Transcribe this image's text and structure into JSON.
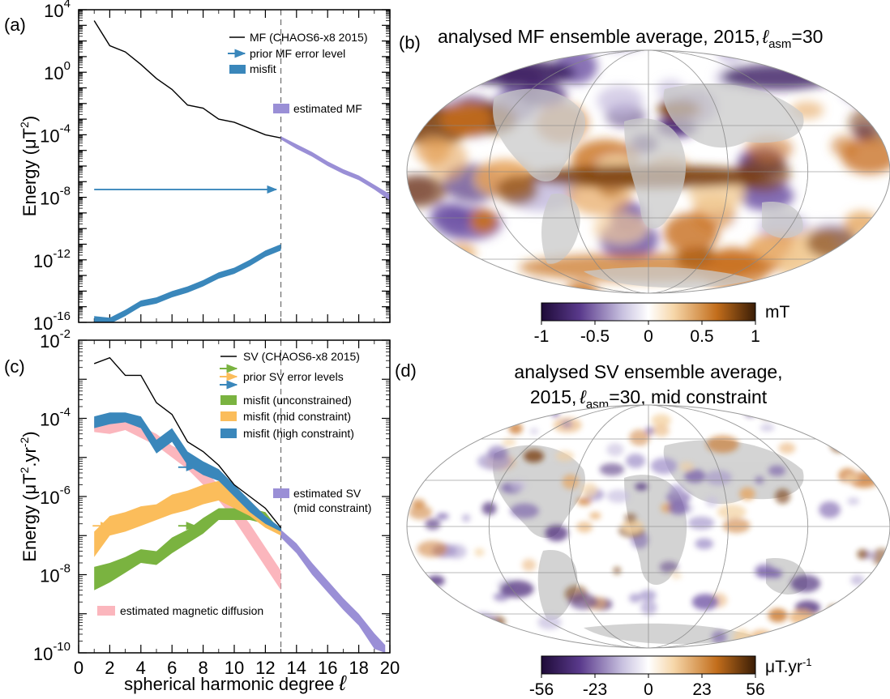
{
  "panels": {
    "a": "(a)",
    "b": "(b)",
    "c": "(c)",
    "d": "(d)"
  },
  "colors": {
    "mf": "#000000",
    "misfit_blue": "#3a87bb",
    "estimated": "#9a8fd6",
    "green": "#7ab340",
    "orange": "#fbbd5b",
    "pink": "#fbb6bd",
    "dashed": "#555555"
  },
  "chart_data": [
    {
      "type": "line",
      "id": "a",
      "xlim": [
        0,
        20
      ],
      "ylim_log10": [
        -16,
        4
      ],
      "y_scale": "log",
      "ylabel_main": "Energy (μT",
      "ylabel_sup": "2",
      "ylabel_end": ")",
      "xticks": [
        0,
        2,
        4,
        6,
        8,
        10,
        12,
        14,
        16,
        18,
        20
      ],
      "yticks": [
        {
          "base": "10",
          "exp": "4",
          "v": 4
        },
        {
          "base": "10",
          "exp": "0",
          "v": 0
        },
        {
          "base": "10",
          "exp": "-4",
          "v": -4
        },
        {
          "base": "10",
          "exp": "-8",
          "v": -8
        },
        {
          "base": "10",
          "exp": "-12",
          "v": -12
        },
        {
          "base": "10",
          "exp": "-16",
          "v": -16
        }
      ],
      "dashed_x": 13,
      "series": [
        {
          "name": "MF (CHAOS6-x8 2015)",
          "kind": "line",
          "x": [
            1,
            2,
            3,
            4,
            5,
            6,
            7,
            8,
            9,
            10,
            11,
            12,
            13
          ],
          "y": [
            3.3,
            1.7,
            1.3,
            0.5,
            -0.4,
            -1.1,
            -2.1,
            -2.3,
            -3.0,
            -3.2,
            -3.6,
            -4.0,
            -4.2
          ]
        },
        {
          "name": "estimated MF",
          "kind": "band",
          "x": [
            13,
            14,
            15,
            16,
            17,
            18,
            19,
            20
          ],
          "lo": [
            -4.3,
            -4.9,
            -5.4,
            -6.0,
            -6.5,
            -6.9,
            -7.5,
            -8.2
          ],
          "hi": [
            -4.1,
            -4.6,
            -5.1,
            -5.7,
            -6.2,
            -6.6,
            -7.2,
            -7.8
          ]
        },
        {
          "name": "misfit",
          "kind": "band",
          "x": [
            1,
            2,
            3,
            4,
            5,
            6,
            7,
            8,
            9,
            10,
            11,
            12,
            13
          ],
          "lo": [
            -16.0,
            -16.1,
            -15.6,
            -15.0,
            -14.8,
            -14.4,
            -14.1,
            -13.7,
            -13.2,
            -12.9,
            -12.4,
            -11.8,
            -11.4
          ],
          "hi": [
            -15.6,
            -15.7,
            -15.2,
            -14.6,
            -14.4,
            -14.0,
            -13.7,
            -13.3,
            -12.8,
            -12.5,
            -12.0,
            -11.4,
            -11.0
          ]
        }
      ],
      "arrows": [
        {
          "name": "prior MF error level",
          "x0": 1,
          "x1": 12.7,
          "y": -7.5
        }
      ],
      "legend": {
        "mf": "MF (CHAOS6-x8 2015)",
        "prior": "prior MF error level",
        "misfit": "misfit",
        "estimated": "estimated MF"
      }
    },
    {
      "type": "line",
      "id": "c",
      "xlim": [
        0,
        20
      ],
      "ylim_log10": [
        -10,
        -2
      ],
      "y_scale": "log",
      "xlabel": "spherical harmonic degree",
      "xlabel_sym": "ℓ",
      "ylabel_main": "Energy (μT",
      "ylabel_sup": "2",
      "ylabel_mid": ".yr",
      "ylabel_sup2": "-2",
      "ylabel_end": ")",
      "xticks": [
        0,
        2,
        4,
        6,
        8,
        10,
        12,
        14,
        16,
        18,
        20
      ],
      "yticks": [
        {
          "base": "10",
          "exp": "-2",
          "v": -2
        },
        {
          "base": "10",
          "exp": "-4",
          "v": -4
        },
        {
          "base": "10",
          "exp": "-6",
          "v": -6
        },
        {
          "base": "10",
          "exp": "-8",
          "v": -8
        },
        {
          "base": "10",
          "exp": "-10",
          "v": -10
        }
      ],
      "dashed_x": 13,
      "series": [
        {
          "name": "estimated magnetic diffusion",
          "kind": "band",
          "x": [
            1,
            2,
            3,
            4,
            5,
            6,
            7,
            8,
            9,
            10,
            11,
            12,
            13
          ],
          "lo": [
            -4.35,
            -4.4,
            -4.3,
            -4.5,
            -4.7,
            -5.0,
            -5.3,
            -5.7,
            -6.1,
            -6.6,
            -7.2,
            -7.8,
            -8.4
          ],
          "hi": [
            -4.0,
            -4.0,
            -3.95,
            -4.2,
            -4.4,
            -4.7,
            -4.9,
            -5.3,
            -5.7,
            -6.2,
            -6.7,
            -7.3,
            -7.9
          ]
        },
        {
          "name": "misfit (unconstrained)",
          "kind": "band",
          "x": [
            1,
            2,
            3,
            4,
            5,
            6,
            7,
            8,
            9,
            10,
            11,
            12,
            13
          ],
          "lo": [
            -8.4,
            -8.2,
            -7.95,
            -7.7,
            -7.75,
            -7.45,
            -7.2,
            -6.95,
            -6.6,
            -6.6,
            -6.6,
            -6.7,
            -7.0
          ],
          "hi": [
            -7.8,
            -7.7,
            -7.55,
            -7.35,
            -7.4,
            -7.05,
            -6.85,
            -6.55,
            -6.3,
            -6.3,
            -6.3,
            -6.4,
            -6.9
          ]
        },
        {
          "name": "misfit (mid constraint)",
          "kind": "band",
          "x": [
            1,
            2,
            3,
            4,
            5,
            6,
            7,
            8,
            9,
            10,
            11,
            12,
            13
          ],
          "lo": [
            -7.55,
            -7.0,
            -6.9,
            -6.75,
            -6.6,
            -6.45,
            -6.35,
            -6.2,
            -6.1,
            -6.3,
            -6.5,
            -6.8,
            -7.0
          ],
          "hi": [
            -6.9,
            -6.5,
            -6.4,
            -6.25,
            -6.2,
            -5.95,
            -5.85,
            -5.7,
            -5.6,
            -5.8,
            -6.1,
            -6.5,
            -6.9
          ]
        },
        {
          "name": "misfit (high constraint)",
          "kind": "band",
          "x": [
            1,
            2,
            3,
            4,
            5,
            6,
            7,
            8,
            9,
            10,
            11,
            12,
            13
          ],
          "lo": [
            -4.25,
            -4.15,
            -4.1,
            -4.25,
            -4.9,
            -4.6,
            -5.2,
            -5.45,
            -5.6,
            -6.0,
            -6.4,
            -6.7,
            -6.9
          ],
          "hi": [
            -3.95,
            -3.85,
            -3.85,
            -3.95,
            -4.55,
            -4.25,
            -4.85,
            -5.1,
            -5.3,
            -5.7,
            -6.1,
            -6.5,
            -6.8
          ]
        },
        {
          "name": "estimated SV (mid constraint)",
          "kind": "band",
          "x": [
            13,
            14,
            15,
            16,
            17,
            18,
            19,
            19.7
          ],
          "lo": [
            -7.05,
            -7.45,
            -8.0,
            -8.45,
            -8.9,
            -9.3,
            -9.9,
            -10.0
          ],
          "hi": [
            -6.85,
            -7.2,
            -7.7,
            -8.15,
            -8.6,
            -9.0,
            -9.5,
            -9.8
          ]
        },
        {
          "name": "SV (CHAOS6-x8 2015)",
          "kind": "line",
          "x": [
            1,
            2,
            3,
            4,
            5,
            6,
            7,
            8,
            9,
            10,
            11,
            12,
            13
          ],
          "y": [
            -2.6,
            -2.45,
            -2.9,
            -2.9,
            -3.6,
            -3.9,
            -4.6,
            -4.85,
            -5.2,
            -5.7,
            -6.0,
            -6.3,
            -6.8
          ]
        }
      ],
      "arrows": [
        {
          "name": "green",
          "x0": 6.4,
          "x1": 7.5,
          "y": -6.75
        },
        {
          "name": "orange",
          "x0": 0.9,
          "x1": 2.0,
          "y": -6.75
        },
        {
          "name": "blue",
          "x0": 6.4,
          "x1": 7.5,
          "y": -5.25
        }
      ],
      "legend": {
        "sv": "SV (CHAOS6-x8 2015)",
        "prior": "prior SV error levels",
        "unc": "misfit (unconstrained)",
        "mid": "misfit (mid constraint)",
        "high": "misfit (high constraint)",
        "est1": "estimated SV",
        "est2": "(mid constraint)",
        "diff": "estimated magnetic diffusion"
      }
    },
    {
      "type": "heatmap",
      "id": "b",
      "title_main": "analysed MF ensemble average, 2015,",
      "title_l": "ℓ",
      "title_sub": "asm",
      "title_end": "=30",
      "colorbar_ticks": [
        "-1",
        "-0.5",
        "0",
        "0.5",
        "1"
      ],
      "colorbar_unit": "mT"
    },
    {
      "type": "heatmap",
      "id": "d",
      "title_line1": "analysed SV ensemble average,",
      "title_line2_main": "2015,",
      "title_l": "ℓ",
      "title_sub": "asm",
      "title_end": "=30, mid constraint",
      "colorbar_ticks": [
        "-56",
        "-23",
        "0",
        "23",
        "56"
      ],
      "colorbar_unit_main": "μT.yr",
      "colorbar_unit_sup": "-1"
    }
  ]
}
